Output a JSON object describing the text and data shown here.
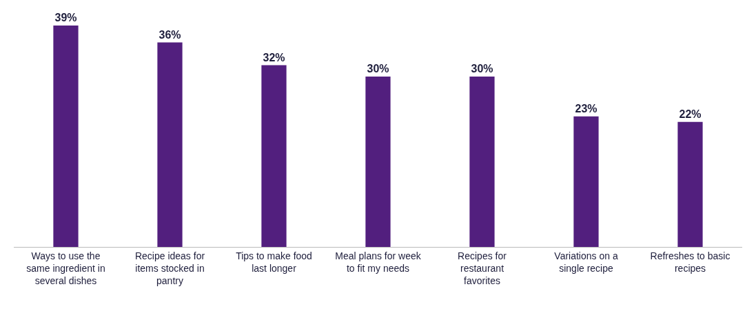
{
  "chart_data": {
    "type": "bar",
    "categories": [
      "Ways to use the same ingredient in several dishes",
      "Recipe ideas for items stocked in pantry",
      "Tips to make food last longer",
      "Meal plans for week to fit my needs",
      "Recipes for restaurant favorites",
      "Variations on a single recipe",
      "Refreshes to basic recipes"
    ],
    "values": [
      39,
      36,
      32,
      30,
      30,
      23,
      22
    ],
    "value_labels": [
      "39%",
      "36%",
      "32%",
      "30%",
      "30%",
      "23%",
      "22%"
    ],
    "color": "#521f7e"
  }
}
